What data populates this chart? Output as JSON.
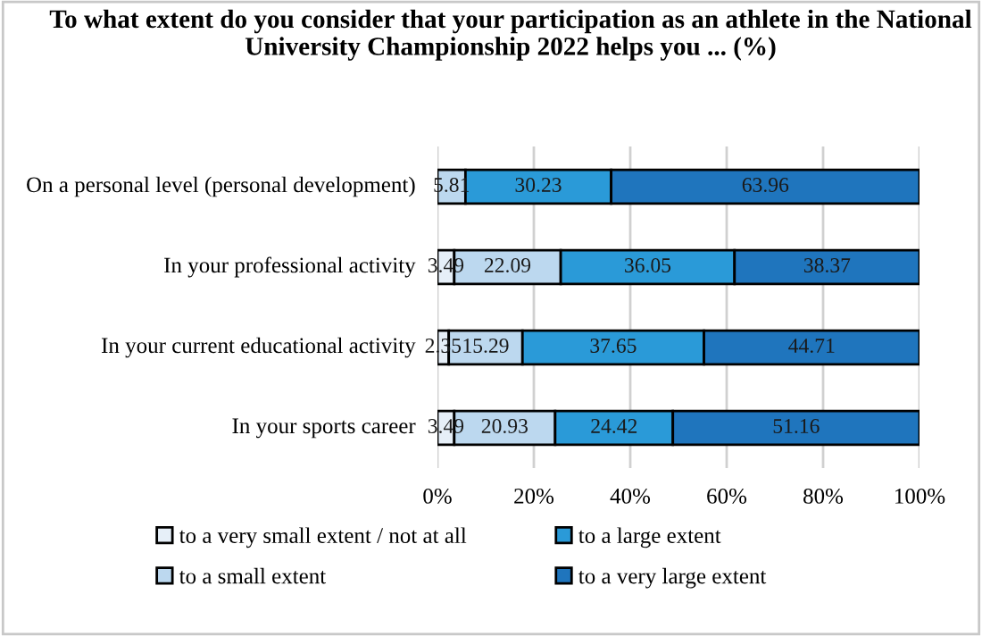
{
  "chart_data": {
    "type": "bar",
    "orientation": "horizontal",
    "stacked": true,
    "title": "To what extent do you consider that your participation as an athlete in the National University Championship 2022 helps you ... (%)",
    "categories": [
      "On a personal level (personal development)",
      "In your professional activity",
      "In your current educational activity",
      "In your sports career"
    ],
    "series": [
      {
        "name": "to a very small extent / not at all",
        "color": "#e6eff8",
        "values": [
          0,
          3.49,
          2.35,
          3.49
        ],
        "value_labels": [
          null,
          "3.49",
          "2.35",
          "3.49"
        ]
      },
      {
        "name": "to a small extent",
        "color": "#bcd8ef",
        "values": [
          5.81,
          22.09,
          15.29,
          20.93
        ],
        "value_labels": [
          "5.81",
          "22.09",
          "15.29",
          "20.93"
        ]
      },
      {
        "name": "to a large extent",
        "color": "#2a9ad8",
        "values": [
          30.23,
          36.05,
          37.65,
          24.42
        ],
        "value_labels": [
          "30.23",
          "36.05",
          "37.65",
          "24.42"
        ]
      },
      {
        "name": "to a very large extent",
        "color": "#1f75bd",
        "values": [
          63.96,
          38.37,
          44.71,
          51.16
        ],
        "value_labels": [
          "63.96",
          "38.37",
          "44.71",
          "51.16"
        ]
      }
    ],
    "xlim": [
      0,
      100
    ],
    "xticks": [
      {
        "value": 0,
        "label": "0%"
      },
      {
        "value": 20,
        "label": "20%"
      },
      {
        "value": 40,
        "label": "40%"
      },
      {
        "value": 60,
        "label": "60%"
      },
      {
        "value": 80,
        "label": "80%"
      },
      {
        "value": 100,
        "label": "100%"
      }
    ],
    "grid": "x",
    "legend": "bottom"
  }
}
